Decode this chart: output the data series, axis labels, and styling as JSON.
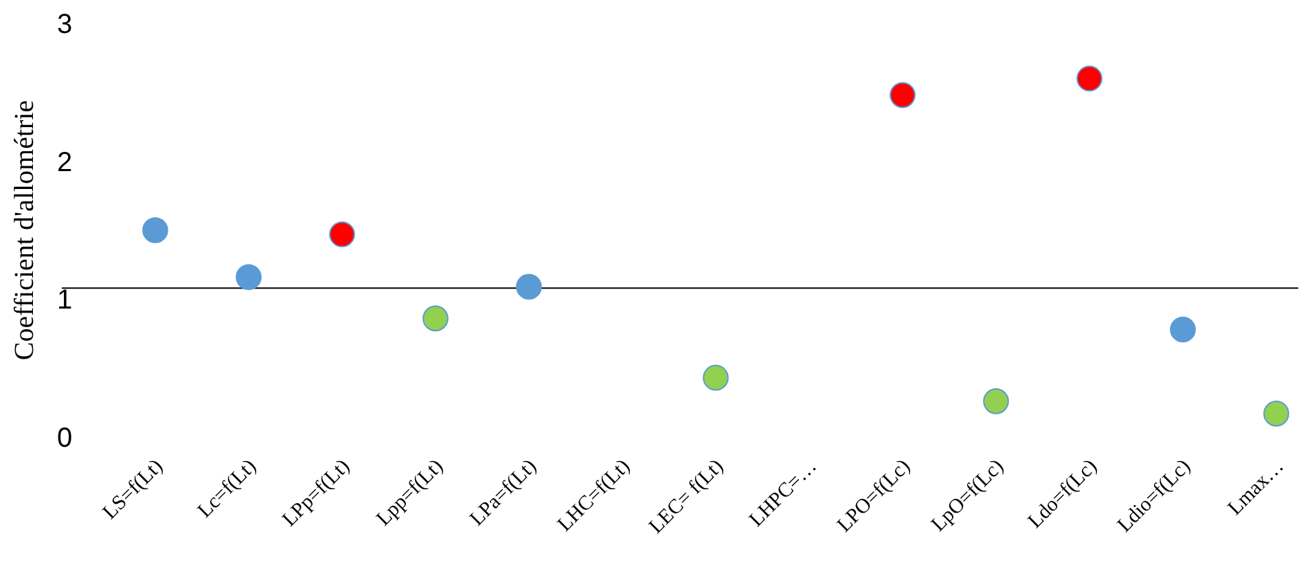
{
  "chart_data": {
    "type": "scatter",
    "ylabel": "Coefficient d'allométrie",
    "categories": [
      "LS=f(Lt)",
      "Lc=f(Lt)",
      "LPp=f(Lt)",
      "Lpp=f(Lt)",
      "LPa=f(Lt)",
      "LHC=f(Lt)",
      "LEC= f(Lt)",
      "LHPC=…",
      "LPO=f(Lc)",
      "LpO=f(Lc)",
      "Ldo=f(Lc)",
      "Ldio=f(Lc)",
      "Lmax…"
    ],
    "series": [
      {
        "color": "#5b9bd5",
        "values": [
          1.5,
          1.16,
          null,
          null,
          1.09,
          null,
          null,
          null,
          null,
          null,
          null,
          0.78,
          null
        ]
      },
      {
        "color": "#ff0000",
        "values": [
          null,
          null,
          1.47,
          null,
          null,
          null,
          null,
          null,
          2.48,
          null,
          2.6,
          null,
          null
        ]
      },
      {
        "color": "#92d050",
        "values": [
          null,
          null,
          null,
          0.86,
          null,
          null,
          0.43,
          null,
          null,
          0.26,
          null,
          null,
          0.17
        ]
      }
    ],
    "ylim": [
      0,
      3
    ],
    "yticks": [
      0,
      1,
      2,
      3
    ],
    "grid": false,
    "marker": "circle",
    "ref_lines": [
      {
        "axis": "y",
        "value": 1.08,
        "color": "#000000"
      }
    ]
  }
}
